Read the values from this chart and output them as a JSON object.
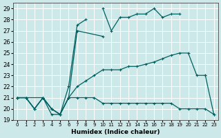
{
  "xlabel": "Humidex (Indice chaleur)",
  "background_color": "#cce8e8",
  "grid_color": "#ffffff",
  "line_color": "#006060",
  "xlim": [
    -0.5,
    23.5
  ],
  "ylim": [
    19,
    29.5
  ],
  "yticks": [
    19,
    20,
    21,
    22,
    23,
    24,
    25,
    26,
    27,
    28,
    29
  ],
  "xticks": [
    0,
    1,
    2,
    3,
    4,
    5,
    6,
    7,
    8,
    9,
    10,
    11,
    12,
    13,
    14,
    15,
    16,
    17,
    18,
    19,
    20,
    21,
    22,
    23
  ],
  "series": [
    {
      "x": [
        0,
        1,
        2,
        3,
        4,
        5,
        6,
        7,
        8,
        9,
        10,
        11,
        12,
        13,
        14,
        15,
        16,
        17,
        18,
        19,
        20,
        21,
        22,
        23
      ],
      "y": [
        21,
        21,
        20,
        21,
        20,
        19.5,
        22,
        27.5,
        28,
        null,
        29,
        27,
        28.2,
        28.2,
        28.5,
        28.5,
        29,
        28.2,
        28.5,
        28.5,
        null,
        null,
        23,
        null
      ]
    },
    {
      "x": [
        0,
        3,
        4,
        5,
        6,
        7,
        10
      ],
      "y": [
        21,
        21,
        20,
        19.5,
        21,
        27,
        26.5
      ]
    },
    {
      "x": [
        0,
        1,
        2,
        3,
        4,
        5,
        6,
        7,
        8,
        9,
        10,
        11,
        12,
        13,
        14,
        15,
        16,
        17,
        18,
        19,
        20,
        21,
        22,
        23
      ],
      "y": [
        21,
        21,
        20,
        21,
        20,
        19.5,
        21,
        22,
        22.5,
        23,
        23.5,
        23.5,
        23.5,
        23.8,
        23.8,
        24,
        24.2,
        24.5,
        24.8,
        25,
        25,
        23,
        23,
        19.5
      ]
    },
    {
      "x": [
        0,
        1,
        2,
        3,
        4,
        5,
        6,
        7,
        8,
        9,
        10,
        11,
        12,
        13,
        14,
        15,
        16,
        17,
        18,
        19,
        20,
        21,
        22,
        23
      ],
      "y": [
        21,
        21,
        20,
        21,
        19.5,
        19.5,
        21,
        21,
        21,
        21,
        20.5,
        20.5,
        20.5,
        20.5,
        20.5,
        20.5,
        20.5,
        20.5,
        20.5,
        20,
        20,
        20,
        20,
        19.5
      ]
    }
  ]
}
